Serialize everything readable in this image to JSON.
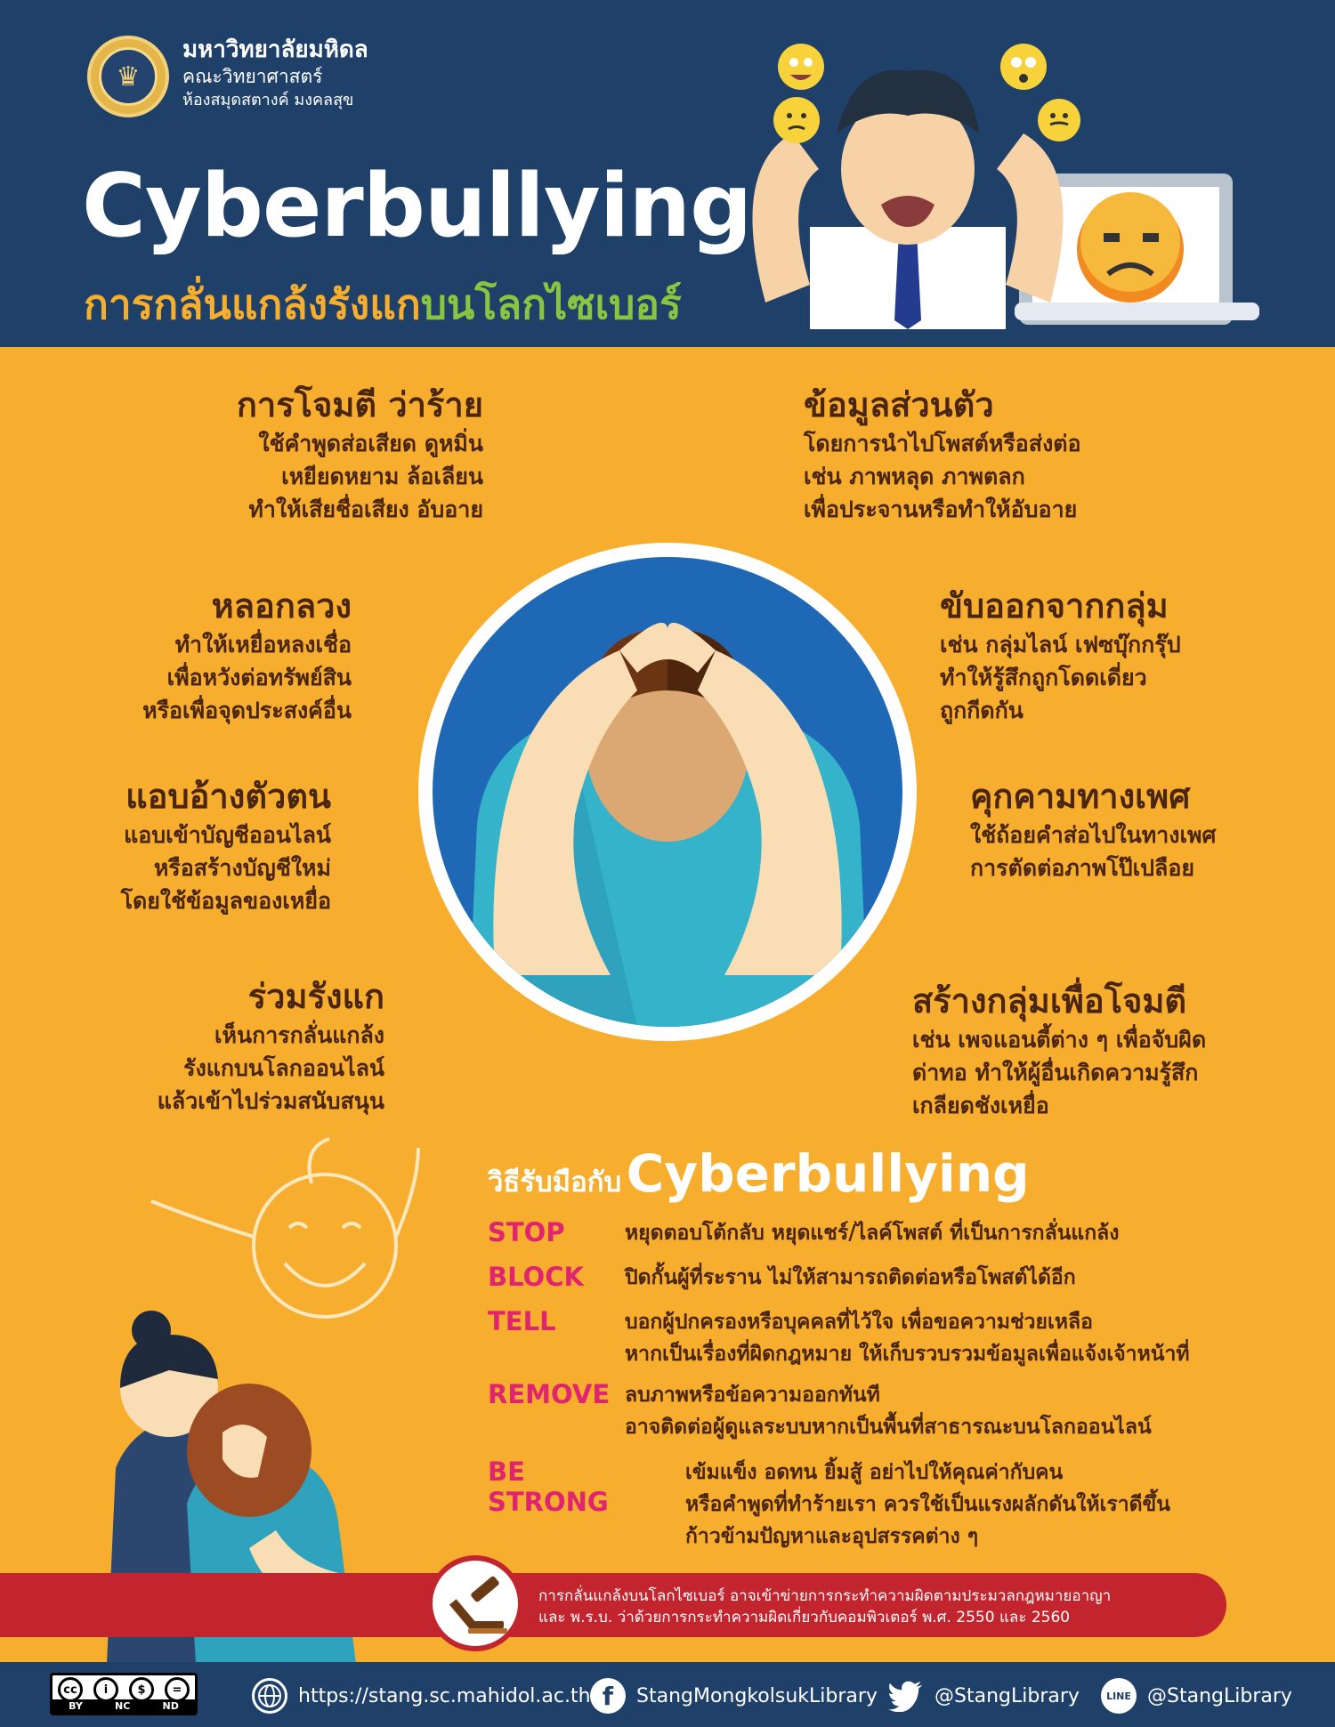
{
  "header": {
    "uni_name": "มหาวิทยาลัยมหิดล",
    "faculty": "คณะวิทยาศาสตร์",
    "library": "ห้องสมุดสตางค์ มงคลสุข",
    "title": "Cyberbullying",
    "subtitle_a": "การกลั่นแกล้งรังแก",
    "subtitle_b": "บนโลกไซเบอร์"
  },
  "types": [
    {
      "title": "การโจมตี ว่าร้าย",
      "lines": [
        "ใช้คำพูดส่อเสียด ดูหมิ่น",
        "เหยียดหยาม ล้อเลียน",
        "ทำให้เสียชื่อเสียง อับอาย"
      ]
    },
    {
      "title": "ข้อมูลส่วนตัว",
      "lines": [
        "โดยการนำไปโพสต์หรือส่งต่อ",
        "เช่น ภาพหลุด ภาพตลก",
        "เพื่อประจานหรือทำให้อับอาย"
      ]
    },
    {
      "title": "หลอกลวง",
      "lines": [
        "ทำให้เหยื่อหลงเชื่อ",
        "เพื่อหวังต่อทรัพย์สิน",
        "หรือเพื่อจุดประสงค์อื่น"
      ]
    },
    {
      "title": "ขับออกจากกลุ่ม",
      "lines": [
        "เช่น กลุ่มไลน์ เฟซบุ๊กกรุ๊ป",
        "ทำให้รู้สึกถูกโดดเดี่ยว",
        "ถูกกีดกัน"
      ]
    },
    {
      "title": "แอบอ้างตัวตน",
      "lines": [
        "แอบเข้าบัญชีออนไลน์",
        "หรือสร้างบัญชีใหม่",
        "โดยใช้ข้อมูลของเหยื่อ"
      ]
    },
    {
      "title": "คุกคามทางเพศ",
      "lines": [
        "ใช้ถ้อยคำส่อไปในทางเพศ",
        "การตัดต่อภาพโป๊เปลือย"
      ]
    },
    {
      "title": "ร่วมรังแก",
      "lines": [
        "เห็นการกลั่นแกล้ง",
        "รังแกบนโลกออนไลน์",
        "แล้วเข้าไปร่วมสนับสนุน"
      ]
    },
    {
      "title": "สร้างกลุ่มเพื่อโจมตี",
      "lines": [
        "เช่น เพจแอนตี้ต่าง ๆ เพื่อจับผิด",
        "ด่าทอ ทำให้ผู้อื่นเกิดความรู้สึก",
        "เกลียดชังเหยื่อ"
      ]
    }
  ],
  "coping": {
    "prefix": "วิธีรับมือกับ",
    "title": "Cyberbullying",
    "items": [
      {
        "key": "STOP",
        "lines": [
          "หยุดตอบโต้กลับ หยุดแชร์/ไลค์โพสต์ ที่เป็นการกลั่นแกล้ง"
        ]
      },
      {
        "key": "BLOCK",
        "lines": [
          "ปิดกั้นผู้ที่ระราน ไม่ให้สามารถติดต่อหรือโพสต์ได้อีก"
        ]
      },
      {
        "key": "TELL",
        "lines": [
          "บอกผู้ปกครองหรือบุคคลที่ไว้ใจ เพื่อขอความช่วยเหลือ",
          "หากเป็นเรื่องที่ผิดกฎหมาย ให้เก็บรวบรวมข้อมูลเพื่อแจ้งเจ้าหน้าที่"
        ]
      },
      {
        "key": "REMOVE",
        "lines": [
          "ลบภาพหรือข้อความออกทันที",
          "อาจติดต่อผู้ดูแลระบบหากเป็นพื้นที่สาธารณะบนโลกออนไลน์"
        ]
      },
      {
        "key": "BE STRONG",
        "lines": [
          "เข้มแข็ง อดทน ยิ้มสู้ อย่าไปให้คุณค่ากับคน",
          "หรือคำพูดที่ทำร้ายเรา ควรใช้เป็นแรงผลักดันให้เราดีขึ้น",
          "ก้าวข้ามปัญหาและอุปสรรคต่าง ๆ"
        ]
      }
    ]
  },
  "law": {
    "line1": "การกลั่นแกล้งบนโลกไซเบอร์ อาจเข้าข่ายการกระทำความผิดตามประมวลกฎหมายอาญา",
    "line2": "และ พ.ร.บ. ว่าด้วยการกระทำความผิดเกี่ยวกับคอมพิวเตอร์ พ.ศ. 2550 และ 2560"
  },
  "footer": {
    "cc_labels": [
      "BY",
      "NC",
      "ND"
    ],
    "website": "https://stang.sc.mahidol.ac.th",
    "facebook": "StangMongkolsukLibrary",
    "twitter": "@StangLibrary",
    "line_icon": "LINE",
    "line": "@StangLibrary"
  },
  "colors": {
    "navy": "#1E4069",
    "orange": "#F7AE2F",
    "brown": "#4A2511",
    "pink": "#E0246F",
    "red": "#C3252E",
    "green": "#89C540"
  }
}
